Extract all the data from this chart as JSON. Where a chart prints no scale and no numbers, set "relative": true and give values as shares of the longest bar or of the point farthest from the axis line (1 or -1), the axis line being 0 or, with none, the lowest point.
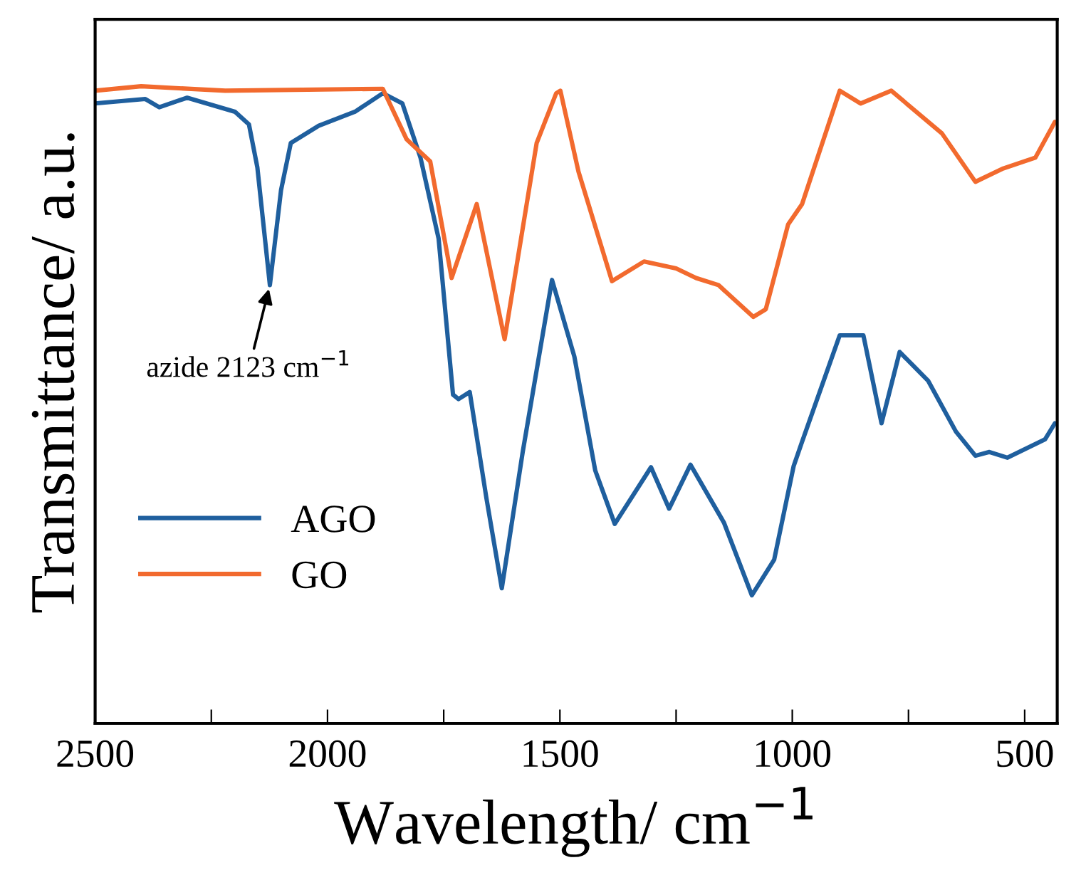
{
  "chart_data": {
    "type": "line",
    "relative": true,
    "xlabel": "Wavelength/ cm$^{−1}$",
    "ylabel": "Transmittance/ a.u.",
    "xlim": [
      2500,
      430
    ],
    "xticks": [
      2500,
      {
        "value": 2250,
        "label": null
      },
      2000,
      {
        "value": 1750,
        "label": null
      },
      1500,
      {
        "value": 1250,
        "label": null
      },
      1000,
      {
        "value": 750,
        "label": null
      },
      500
    ],
    "grid": false,
    "legend": "bottom left",
    "marker": "none",
    "line_style": "solid",
    "annotations": [
      {
        "text": "azide 2123 cm$^{−1}$",
        "x": 2124,
        "y": 0.688
      }
    ],
    "series": [
      {
        "name": "AGO",
        "color": "#1f5f9e",
        "x": [
          2500,
          2392,
          2362,
          2302,
          2199,
          2169,
          2151,
          2124,
          2100,
          2079,
          2019,
          1941,
          1881,
          1839,
          1800,
          1761,
          1730,
          1718,
          1694,
          1658,
          1625,
          1580,
          1517,
          1469,
          1424,
          1382,
          1304,
          1265,
          1219,
          1147,
          1087,
          1039,
          997,
          979,
          898,
          847,
          808,
          769,
          708,
          648,
          606,
          576,
          537,
          456,
          435
        ],
        "values": [
          0.973,
          0.98,
          0.967,
          0.982,
          0.96,
          0.94,
          0.873,
          0.688,
          0.837,
          0.911,
          0.938,
          0.96,
          0.989,
          0.973,
          0.888,
          0.761,
          0.516,
          0.509,
          0.52,
          0.353,
          0.212,
          0.426,
          0.696,
          0.576,
          0.397,
          0.313,
          0.402,
          0.337,
          0.406,
          0.315,
          0.201,
          0.257,
          0.404,
          0.442,
          0.609,
          0.609,
          0.471,
          0.583,
          0.538,
          0.458,
          0.42,
          0.426,
          0.417,
          0.446,
          0.471
        ]
      },
      {
        "name": "GO",
        "color": "#f26a2e",
        "x": [
          2500,
          2401,
          2220,
          1881,
          1830,
          1779,
          1733,
          1679,
          1619,
          1550,
          1508,
          1499,
          1460,
          1388,
          1319,
          1250,
          1207,
          1159,
          1084,
          1057,
          1009,
          979,
          898,
          853,
          787,
          678,
          606,
          546,
          477,
          435
        ],
        "values": [
          0.993,
          1.0,
          0.993,
          0.996,
          0.917,
          0.882,
          0.699,
          0.815,
          0.603,
          0.911,
          0.989,
          0.993,
          0.866,
          0.694,
          0.725,
          0.714,
          0.699,
          0.688,
          0.638,
          0.65,
          0.783,
          0.815,
          0.993,
          0.973,
          0.993,
          0.926,
          0.85,
          0.871,
          0.888,
          0.944
        ]
      }
    ]
  }
}
